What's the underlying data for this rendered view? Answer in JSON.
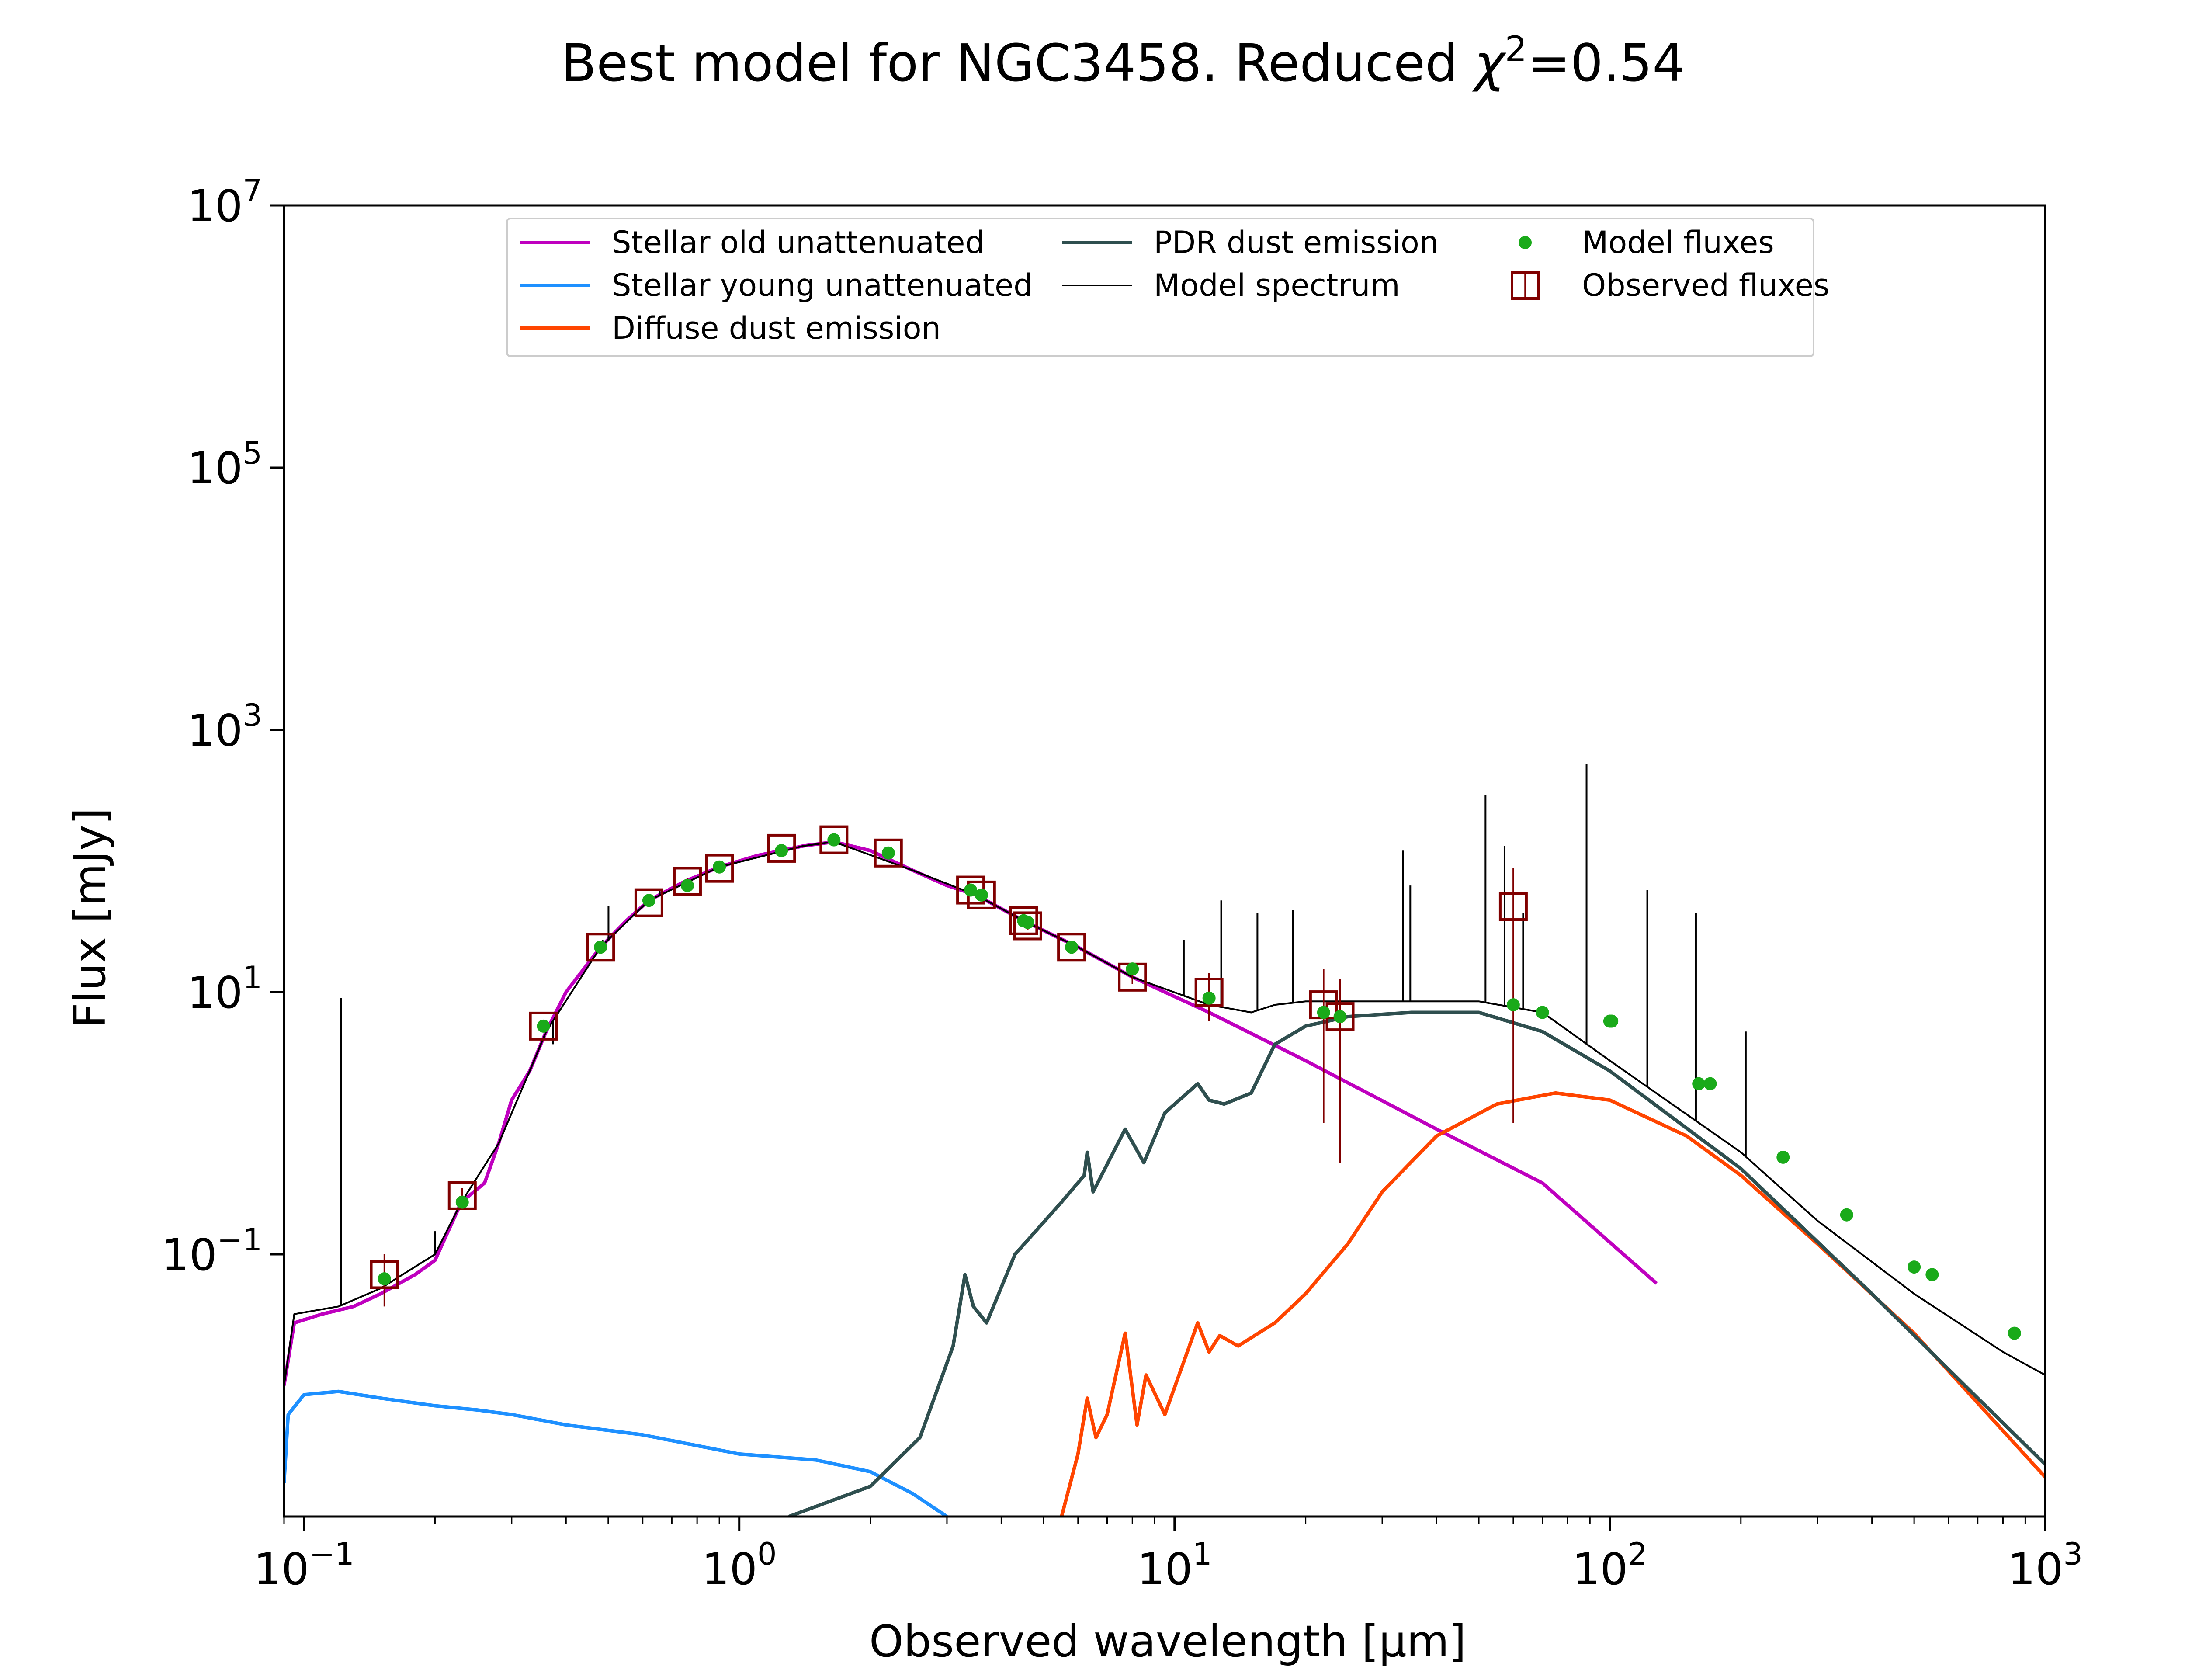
{
  "chart_data": {
    "type": "line",
    "title": {
      "main": "Best model for NGC3458. Reduced ",
      "chi": "χ",
      "sup": "2",
      "rest": "=0.54"
    },
    "xlabel": "Observed wavelength [μm]",
    "ylabel": "Flux [mJy]",
    "xscale": "log",
    "yscale": "log",
    "xlim": [
      0.09,
      1000
    ],
    "ylim": [
      0.001,
      10000000
    ],
    "x_ticks": [
      {
        "value": 0.1,
        "base": "10",
        "exp": "−1"
      },
      {
        "value": 1,
        "base": "10",
        "exp": "0"
      },
      {
        "value": 10,
        "base": "10",
        "exp": "1"
      },
      {
        "value": 100,
        "base": "10",
        "exp": "2"
      },
      {
        "value": 1000,
        "base": "10",
        "exp": "3"
      }
    ],
    "y_ticks": [
      {
        "value": 0.1,
        "base": "10",
        "exp": "−1"
      },
      {
        "value": 10,
        "base": "10",
        "exp": "1"
      },
      {
        "value": 1000,
        "base": "10",
        "exp": "3"
      },
      {
        "value": 100000,
        "base": "10",
        "exp": "5"
      },
      {
        "value": 10000000,
        "base": "10",
        "exp": "7"
      }
    ],
    "grid": false,
    "legend_position": "top-center",
    "legend": [
      {
        "label": "Stellar old unattenuated",
        "kind": "line",
        "color": "#bf00bf",
        "width": 2
      },
      {
        "label": "Stellar young unattenuated",
        "kind": "line",
        "color": "#1e90ff",
        "width": 2
      },
      {
        "label": "Diffuse dust emission",
        "kind": "line",
        "color": "#ff4500",
        "width": 2
      },
      {
        "label": "PDR dust emission",
        "kind": "line",
        "color": "#2f4f4f",
        "width": 2
      },
      {
        "label": "Model spectrum",
        "kind": "line",
        "color": "#000000",
        "width": 1
      },
      {
        "label": "Model fluxes",
        "kind": "dot",
        "color": "#1aaa1a"
      },
      {
        "label": "Observed fluxes",
        "kind": "square",
        "color": "#800000"
      }
    ],
    "series": [
      {
        "id": "stellar_old",
        "color": "#bf00bf",
        "width": 2,
        "points": [
          [
            0.09,
            0.01
          ],
          [
            0.095,
            0.03
          ],
          [
            0.11,
            0.035
          ],
          [
            0.13,
            0.04
          ],
          [
            0.15,
            0.05
          ],
          [
            0.18,
            0.07
          ],
          [
            0.2,
            0.09
          ],
          [
            0.23,
            0.25
          ],
          [
            0.26,
            0.35
          ],
          [
            0.28,
            0.7
          ],
          [
            0.3,
            1.5
          ],
          [
            0.33,
            2.5
          ],
          [
            0.36,
            5
          ],
          [
            0.4,
            10
          ],
          [
            0.48,
            22
          ],
          [
            0.55,
            35
          ],
          [
            0.62,
            50
          ],
          [
            0.75,
            70
          ],
          [
            0.9,
            90
          ],
          [
            1.1,
            110
          ],
          [
            1.4,
            130
          ],
          [
            1.65,
            140
          ],
          [
            2.0,
            120
          ],
          [
            2.5,
            85
          ],
          [
            3.0,
            65
          ],
          [
            3.5,
            55
          ],
          [
            4.5,
            35
          ],
          [
            6,
            22
          ],
          [
            8,
            13
          ],
          [
            12,
            7
          ],
          [
            20,
            3
          ],
          [
            40,
            0.9
          ],
          [
            70,
            0.35
          ],
          [
            128,
            0.06
          ]
        ]
      },
      {
        "id": "stellar_young",
        "color": "#1e90ff",
        "width": 2,
        "points": [
          [
            0.09,
            0.0018
          ],
          [
            0.092,
            0.006
          ],
          [
            0.1,
            0.0085
          ],
          [
            0.12,
            0.009
          ],
          [
            0.15,
            0.008
          ],
          [
            0.2,
            0.007
          ],
          [
            0.25,
            0.0065
          ],
          [
            0.3,
            0.006
          ],
          [
            0.4,
            0.005
          ],
          [
            0.6,
            0.0042
          ],
          [
            1.0,
            0.003
          ],
          [
            1.5,
            0.0027
          ],
          [
            2.0,
            0.0022
          ],
          [
            2.5,
            0.0015
          ],
          [
            3.0,
            0.001
          ]
        ]
      },
      {
        "id": "diffuse_dust",
        "color": "#ff4500",
        "width": 2,
        "points": [
          [
            5.5,
            0.001
          ],
          [
            6.0,
            0.003
          ],
          [
            6.3,
            0.008
          ],
          [
            6.6,
            0.004
          ],
          [
            7.0,
            0.006
          ],
          [
            7.7,
            0.025
          ],
          [
            8.2,
            0.005
          ],
          [
            8.6,
            0.012
          ],
          [
            9.5,
            0.006
          ],
          [
            11.3,
            0.03
          ],
          [
            12,
            0.018
          ],
          [
            12.7,
            0.024
          ],
          [
            14,
            0.02
          ],
          [
            17,
            0.03
          ],
          [
            20,
            0.05
          ],
          [
            25,
            0.12
          ],
          [
            30,
            0.3
          ],
          [
            40,
            0.8
          ],
          [
            55,
            1.4
          ],
          [
            75,
            1.7
          ],
          [
            100,
            1.5
          ],
          [
            150,
            0.8
          ],
          [
            200,
            0.4
          ],
          [
            300,
            0.12
          ],
          [
            500,
            0.025
          ],
          [
            1000,
            0.002
          ]
        ]
      },
      {
        "id": "pdr_dust",
        "color": "#2f4f4f",
        "width": 2,
        "points": [
          [
            1.3,
            0.001
          ],
          [
            2.0,
            0.0017
          ],
          [
            2.6,
            0.004
          ],
          [
            3.1,
            0.02
          ],
          [
            3.3,
            0.07
          ],
          [
            3.45,
            0.04
          ],
          [
            3.7,
            0.03
          ],
          [
            4.3,
            0.1
          ],
          [
            5.5,
            0.25
          ],
          [
            6.2,
            0.4
          ],
          [
            6.3,
            0.6
          ],
          [
            6.5,
            0.3
          ],
          [
            7.7,
            0.9
          ],
          [
            8.5,
            0.5
          ],
          [
            9.5,
            1.2
          ],
          [
            11.3,
            2.0
          ],
          [
            12,
            1.5
          ],
          [
            13,
            1.4
          ],
          [
            15,
            1.7
          ],
          [
            17,
            4
          ],
          [
            20,
            5.5
          ],
          [
            25,
            6.5
          ],
          [
            35,
            7
          ],
          [
            50,
            7
          ],
          [
            70,
            5
          ],
          [
            100,
            2.5
          ],
          [
            200,
            0.45
          ],
          [
            400,
            0.05
          ],
          [
            700,
            0.008
          ],
          [
            1000,
            0.0025
          ]
        ]
      },
      {
        "id": "model_spectrum",
        "color": "#000000",
        "width": 1,
        "points": [
          [
            0.09,
            0.01
          ],
          [
            0.095,
            0.035
          ],
          [
            0.12,
            0.04
          ],
          [
            0.15,
            0.055
          ],
          [
            0.2,
            0.1
          ],
          [
            0.23,
            0.25
          ],
          [
            0.28,
            0.7
          ],
          [
            0.33,
            2.5
          ],
          [
            0.36,
            5
          ],
          [
            0.48,
            22
          ],
          [
            0.62,
            50
          ],
          [
            0.9,
            90
          ],
          [
            1.4,
            130
          ],
          [
            1.65,
            140
          ],
          [
            2.5,
            85
          ],
          [
            3.5,
            55
          ],
          [
            4.5,
            35
          ],
          [
            6,
            22
          ],
          [
            8,
            13
          ],
          [
            12,
            8
          ],
          [
            15,
            7
          ],
          [
            17,
            8
          ],
          [
            20,
            8.5
          ],
          [
            30,
            8.5
          ],
          [
            50,
            8.5
          ],
          [
            70,
            7
          ],
          [
            100,
            3
          ],
          [
            200,
            0.6
          ],
          [
            300,
            0.18
          ],
          [
            500,
            0.05
          ],
          [
            800,
            0.018
          ],
          [
            1000,
            0.012
          ]
        ]
      }
    ],
    "emission_lines": [
      {
        "x": 0.1216,
        "peak": 9
      },
      {
        "x": 0.2,
        "peak": 0.15
      },
      {
        "x": 0.373,
        "peak": 4
      },
      {
        "x": 0.4861,
        "peak": 25
      },
      {
        "x": 0.5007,
        "peak": 45
      },
      {
        "x": 0.6563,
        "peak": 60
      },
      {
        "x": 10.5,
        "peak": 25
      },
      {
        "x": 12.8,
        "peak": 50
      },
      {
        "x": 15.5,
        "peak": 40
      },
      {
        "x": 18.7,
        "peak": 42
      },
      {
        "x": 33.5,
        "peak": 120
      },
      {
        "x": 34.8,
        "peak": 65
      },
      {
        "x": 51.8,
        "peak": 320
      },
      {
        "x": 57.3,
        "peak": 130
      },
      {
        "x": 63.2,
        "peak": 40
      },
      {
        "x": 88.4,
        "peak": 550
      },
      {
        "x": 121.9,
        "peak": 60
      },
      {
        "x": 157.7,
        "peak": 40
      },
      {
        "x": 205.2,
        "peak": 5
      }
    ],
    "model_fluxes": [
      [
        0.153,
        0.065
      ],
      [
        0.231,
        0.25
      ],
      [
        0.355,
        5.5
      ],
      [
        0.48,
        22
      ],
      [
        0.62,
        50
      ],
      [
        0.76,
        65
      ],
      [
        0.9,
        90
      ],
      [
        1.25,
        120
      ],
      [
        1.65,
        145
      ],
      [
        2.2,
        115
      ],
      [
        3.4,
        60
      ],
      [
        3.6,
        55
      ],
      [
        4.5,
        35
      ],
      [
        4.6,
        34
      ],
      [
        5.8,
        22
      ],
      [
        8.0,
        15
      ],
      [
        12,
        9
      ],
      [
        22,
        7
      ],
      [
        24,
        6.5
      ],
      [
        60,
        8
      ],
      [
        70,
        7
      ],
      [
        100,
        6
      ],
      [
        101,
        6
      ],
      [
        160,
        2
      ],
      [
        170,
        2
      ],
      [
        250,
        0.55
      ],
      [
        350,
        0.2
      ],
      [
        500,
        0.08
      ],
      [
        550,
        0.07
      ],
      [
        850,
        0.025
      ]
    ],
    "observed_fluxes": [
      {
        "x": 0.153,
        "y": 0.07,
        "err": 0.03
      },
      {
        "x": 0.231,
        "y": 0.28,
        "err": 0.04
      },
      {
        "x": 0.355,
        "y": 5.5,
        "err": 0.5
      },
      {
        "x": 0.48,
        "y": 22,
        "err": 1.5
      },
      {
        "x": 0.62,
        "y": 48,
        "err": 3
      },
      {
        "x": 0.76,
        "y": 70,
        "err": 4
      },
      {
        "x": 0.9,
        "y": 88,
        "err": 5
      },
      {
        "x": 1.25,
        "y": 125,
        "err": 6
      },
      {
        "x": 1.65,
        "y": 145,
        "err": 7
      },
      {
        "x": 2.2,
        "y": 115,
        "err": 6
      },
      {
        "x": 3.4,
        "y": 60,
        "err": 3
      },
      {
        "x": 3.6,
        "y": 55,
        "err": 3
      },
      {
        "x": 4.5,
        "y": 35,
        "err": 2
      },
      {
        "x": 4.6,
        "y": 32,
        "err": 2
      },
      {
        "x": 5.8,
        "y": 22,
        "err": 1.5
      },
      {
        "x": 8.0,
        "y": 13,
        "err": 1.5
      },
      {
        "x": 12,
        "y": 10,
        "err": 4
      },
      {
        "x": 22,
        "y": 8,
        "err": 7
      },
      {
        "x": 24,
        "y": 6.5,
        "err": 6
      },
      {
        "x": 60,
        "y": 45,
        "err": 44
      }
    ]
  }
}
